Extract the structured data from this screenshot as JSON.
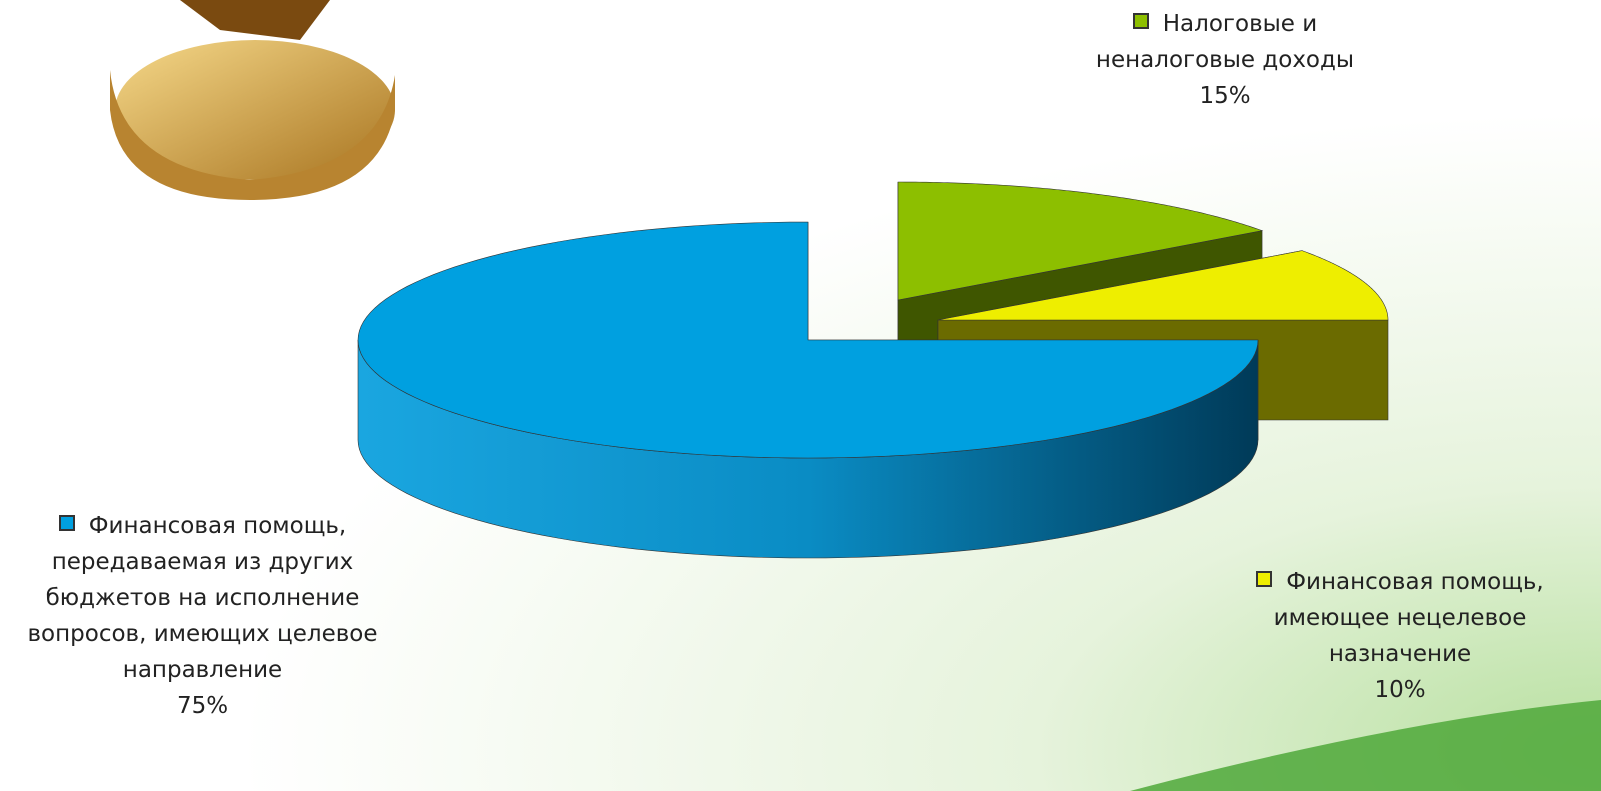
{
  "chart_data": {
    "type": "pie3d",
    "categories": [
      "Налоговые и неналоговые доходы",
      "Финансовая помощь, имеющее нецелевое назначение",
      "Финансовая помощь, передаваемая из других бюджетов на исполнение вопросов, имеющих целевое направление"
    ],
    "values": [
      15,
      10,
      75
    ],
    "value_labels": [
      "15%",
      "10%",
      "75%"
    ],
    "colors": [
      "#8dbf00",
      "#eeee00",
      "#00a0e0"
    ]
  }
}
